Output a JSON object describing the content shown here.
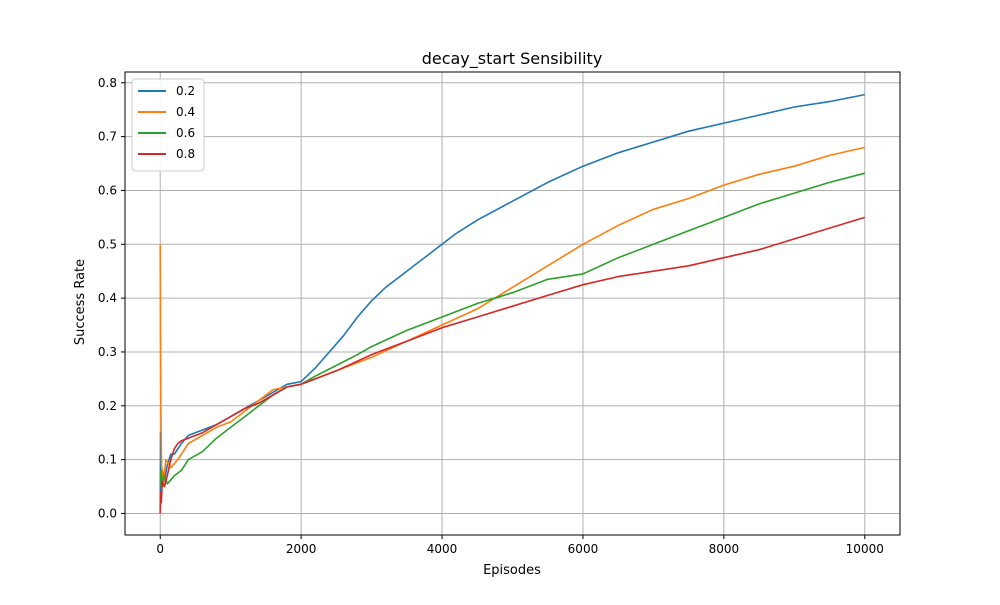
{
  "chart_data": {
    "type": "line",
    "title": "decay_start Sensibility",
    "xlabel": "Episodes",
    "ylabel": "Success Rate",
    "xlim": [
      -500,
      10500
    ],
    "ylim": [
      -0.04,
      0.82
    ],
    "x_ticks": [
      0,
      2000,
      4000,
      6000,
      8000,
      10000
    ],
    "x_tick_labels": [
      "0",
      "2000",
      "4000",
      "6000",
      "8000",
      "10000"
    ],
    "y_ticks": [
      0.0,
      0.1,
      0.2,
      0.3,
      0.4,
      0.5,
      0.6,
      0.7,
      0.8
    ],
    "y_tick_labels": [
      "0.0",
      "0.1",
      "0.2",
      "0.3",
      "0.4",
      "0.5",
      "0.6",
      "0.7",
      "0.8"
    ],
    "grid": true,
    "legend_position": "top-left",
    "series": [
      {
        "name": "0.2",
        "color": "#1f77b4",
        "points": [
          [
            0,
            0.0
          ],
          [
            5,
            0.15
          ],
          [
            10,
            0.05
          ],
          [
            30,
            0.08
          ],
          [
            60,
            0.06
          ],
          [
            100,
            0.09
          ],
          [
            150,
            0.11
          ],
          [
            200,
            0.11
          ],
          [
            300,
            0.13
          ],
          [
            400,
            0.145
          ],
          [
            600,
            0.155
          ],
          [
            800,
            0.165
          ],
          [
            1000,
            0.18
          ],
          [
            1200,
            0.195
          ],
          [
            1400,
            0.21
          ],
          [
            1600,
            0.225
          ],
          [
            1800,
            0.24
          ],
          [
            2000,
            0.245
          ],
          [
            2200,
            0.27
          ],
          [
            2400,
            0.3
          ],
          [
            2600,
            0.33
          ],
          [
            2800,
            0.365
          ],
          [
            3000,
            0.395
          ],
          [
            3200,
            0.42
          ],
          [
            3400,
            0.44
          ],
          [
            3600,
            0.46
          ],
          [
            3800,
            0.48
          ],
          [
            4000,
            0.5
          ],
          [
            4200,
            0.52
          ],
          [
            4500,
            0.545
          ],
          [
            5000,
            0.58
          ],
          [
            5500,
            0.615
          ],
          [
            6000,
            0.645
          ],
          [
            6500,
            0.67
          ],
          [
            7000,
            0.69
          ],
          [
            7500,
            0.71
          ],
          [
            8000,
            0.725
          ],
          [
            8500,
            0.74
          ],
          [
            9000,
            0.755
          ],
          [
            9500,
            0.765
          ],
          [
            10000,
            0.778
          ]
        ]
      },
      {
        "name": "0.4",
        "color": "#ff7f0e",
        "points": [
          [
            0,
            0.5
          ],
          [
            5,
            0.3
          ],
          [
            10,
            0.19
          ],
          [
            20,
            0.09
          ],
          [
            40,
            0.05
          ],
          [
            80,
            0.1
          ],
          [
            150,
            0.085
          ],
          [
            250,
            0.1
          ],
          [
            400,
            0.13
          ],
          [
            600,
            0.145
          ],
          [
            800,
            0.16
          ],
          [
            1000,
            0.17
          ],
          [
            1200,
            0.19
          ],
          [
            1400,
            0.21
          ],
          [
            1600,
            0.23
          ],
          [
            1800,
            0.235
          ],
          [
            2000,
            0.24
          ],
          [
            2200,
            0.25
          ],
          [
            2500,
            0.265
          ],
          [
            3000,
            0.29
          ],
          [
            3500,
            0.32
          ],
          [
            4000,
            0.35
          ],
          [
            4500,
            0.38
          ],
          [
            5000,
            0.42
          ],
          [
            5500,
            0.46
          ],
          [
            6000,
            0.5
          ],
          [
            6500,
            0.535
          ],
          [
            7000,
            0.565
          ],
          [
            7500,
            0.585
          ],
          [
            8000,
            0.61
          ],
          [
            8500,
            0.63
          ],
          [
            9000,
            0.645
          ],
          [
            9500,
            0.665
          ],
          [
            10000,
            0.68
          ]
        ]
      },
      {
        "name": "0.6",
        "color": "#2ca02c",
        "points": [
          [
            0,
            0.05
          ],
          [
            10,
            0.08
          ],
          [
            30,
            0.06
          ],
          [
            60,
            0.07
          ],
          [
            100,
            0.055
          ],
          [
            200,
            0.07
          ],
          [
            300,
            0.08
          ],
          [
            400,
            0.1
          ],
          [
            600,
            0.115
          ],
          [
            800,
            0.14
          ],
          [
            1000,
            0.16
          ],
          [
            1200,
            0.18
          ],
          [
            1400,
            0.2
          ],
          [
            1600,
            0.22
          ],
          [
            1800,
            0.235
          ],
          [
            2000,
            0.24
          ],
          [
            2200,
            0.255
          ],
          [
            2500,
            0.275
          ],
          [
            2800,
            0.295
          ],
          [
            3000,
            0.31
          ],
          [
            3500,
            0.34
          ],
          [
            4000,
            0.365
          ],
          [
            4500,
            0.39
          ],
          [
            5000,
            0.41
          ],
          [
            5500,
            0.435
          ],
          [
            6000,
            0.445
          ],
          [
            6500,
            0.475
          ],
          [
            7000,
            0.5
          ],
          [
            7500,
            0.525
          ],
          [
            8000,
            0.55
          ],
          [
            8500,
            0.575
          ],
          [
            9000,
            0.595
          ],
          [
            9500,
            0.615
          ],
          [
            10000,
            0.632
          ]
        ]
      },
      {
        "name": "0.8",
        "color": "#d62728",
        "points": [
          [
            0,
            0.0
          ],
          [
            8,
            0.04
          ],
          [
            15,
            0.02
          ],
          [
            30,
            0.06
          ],
          [
            60,
            0.05
          ],
          [
            100,
            0.07
          ],
          [
            150,
            0.1
          ],
          [
            200,
            0.12
          ],
          [
            250,
            0.13
          ],
          [
            300,
            0.135
          ],
          [
            400,
            0.14
          ],
          [
            600,
            0.15
          ],
          [
            800,
            0.165
          ],
          [
            1000,
            0.18
          ],
          [
            1200,
            0.195
          ],
          [
            1400,
            0.205
          ],
          [
            1600,
            0.22
          ],
          [
            1800,
            0.235
          ],
          [
            2000,
            0.24
          ],
          [
            2200,
            0.25
          ],
          [
            2500,
            0.265
          ],
          [
            3000,
            0.295
          ],
          [
            3500,
            0.32
          ],
          [
            4000,
            0.345
          ],
          [
            4500,
            0.365
          ],
          [
            5000,
            0.385
          ],
          [
            5500,
            0.405
          ],
          [
            6000,
            0.425
          ],
          [
            6500,
            0.44
          ],
          [
            7000,
            0.45
          ],
          [
            7500,
            0.46
          ],
          [
            8000,
            0.475
          ],
          [
            8500,
            0.49
          ],
          [
            9000,
            0.51
          ],
          [
            9500,
            0.53
          ],
          [
            10000,
            0.55
          ]
        ]
      }
    ]
  }
}
